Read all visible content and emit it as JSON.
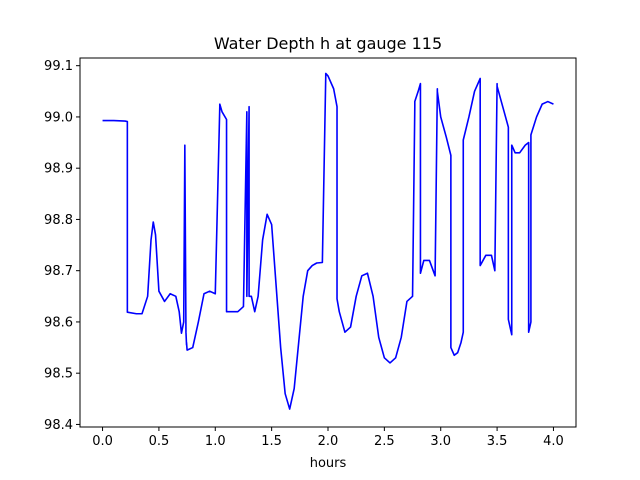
{
  "chart_data": {
    "type": "line",
    "title": "Water Depth h at gauge 115",
    "xlabel": "hours",
    "ylabel": "",
    "xlim": [
      -0.2,
      4.2
    ],
    "ylim": [
      98.395,
      99.115
    ],
    "xticks": [
      0.0,
      0.5,
      1.0,
      1.5,
      2.0,
      2.5,
      3.0,
      3.5,
      4.0
    ],
    "xtick_labels": [
      "0.0",
      "0.5",
      "1.0",
      "1.5",
      "2.0",
      "2.5",
      "3.0",
      "3.5",
      "4.0"
    ],
    "yticks": [
      98.4,
      98.5,
      98.6,
      98.7,
      98.8,
      98.9,
      99.0,
      99.1
    ],
    "ytick_labels": [
      "98.4",
      "98.5",
      "98.6",
      "98.7",
      "98.8",
      "98.9",
      "99.0",
      "99.1"
    ],
    "grid": false,
    "series": [
      {
        "color": "#0000ff",
        "x": [
          0.0,
          0.1,
          0.2,
          0.22,
          0.22,
          0.3,
          0.35,
          0.4,
          0.43,
          0.45,
          0.47,
          0.5,
          0.55,
          0.6,
          0.65,
          0.68,
          0.7,
          0.72,
          0.73,
          0.73,
          0.74,
          0.745,
          0.745,
          0.75,
          0.8,
          0.85,
          0.9,
          0.95,
          1.0,
          1.04,
          1.04,
          1.06,
          1.1,
          1.1,
          1.15,
          1.2,
          1.25,
          1.28,
          1.28,
          1.3,
          1.3,
          1.32,
          1.35,
          1.38,
          1.42,
          1.46,
          1.5,
          1.54,
          1.58,
          1.62,
          1.66,
          1.7,
          1.74,
          1.78,
          1.82,
          1.86,
          1.9,
          1.95,
          1.98,
          1.98,
          2.0,
          2.05,
          2.08,
          2.08,
          2.1,
          2.15,
          2.2,
          2.25,
          2.3,
          2.35,
          2.4,
          2.45,
          2.5,
          2.55,
          2.6,
          2.65,
          2.7,
          2.75,
          2.77,
          2.77,
          2.8,
          2.82,
          2.82,
          2.85,
          2.9,
          2.95,
          2.97,
          2.97,
          3.0,
          3.05,
          3.09,
          3.09,
          3.12,
          3.15,
          3.18,
          3.2,
          3.2,
          3.25,
          3.3,
          3.35,
          3.35,
          3.4,
          3.45,
          3.48,
          3.5,
          3.5,
          3.55,
          3.6,
          3.6,
          3.63,
          3.63,
          3.66,
          3.7,
          3.75,
          3.78,
          3.78,
          3.8,
          3.8,
          3.85,
          3.9,
          3.95,
          4.0
        ],
        "y": [
          98.993,
          98.993,
          98.992,
          98.991,
          98.619,
          98.616,
          98.616,
          98.65,
          98.76,
          98.795,
          98.77,
          98.66,
          98.64,
          98.655,
          98.65,
          98.62,
          98.578,
          98.6,
          98.945,
          98.94,
          98.58,
          98.555,
          98.56,
          98.545,
          98.55,
          98.6,
          98.655,
          98.66,
          98.655,
          99.02,
          99.025,
          99.01,
          98.995,
          98.62,
          98.62,
          98.62,
          98.63,
          99.01,
          98.65,
          99.02,
          98.65,
          98.65,
          98.62,
          98.65,
          98.76,
          98.81,
          98.79,
          98.67,
          98.55,
          98.46,
          98.43,
          98.47,
          98.56,
          98.65,
          98.7,
          98.71,
          98.715,
          98.716,
          99.08,
          99.085,
          99.08,
          99.055,
          99.02,
          98.645,
          98.62,
          98.58,
          98.59,
          98.65,
          98.69,
          98.695,
          98.65,
          98.57,
          98.53,
          98.52,
          98.53,
          98.57,
          98.64,
          98.65,
          99.02,
          99.03,
          99.05,
          99.065,
          98.695,
          98.72,
          98.72,
          98.69,
          99.055,
          99.05,
          99.0,
          98.96,
          98.925,
          98.55,
          98.535,
          98.54,
          98.56,
          98.58,
          98.955,
          99.0,
          99.05,
          99.075,
          98.71,
          98.73,
          98.73,
          98.7,
          99.065,
          99.06,
          99.02,
          98.98,
          98.605,
          98.575,
          98.945,
          98.93,
          98.93,
          98.945,
          98.95,
          98.58,
          98.6,
          98.965,
          99.0,
          99.025,
          99.03,
          99.025
        ]
      }
    ]
  }
}
